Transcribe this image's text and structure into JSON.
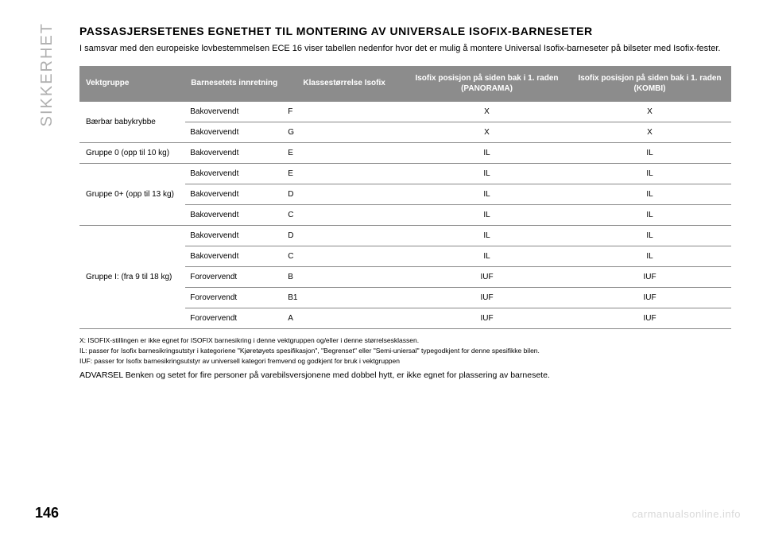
{
  "vertical_label": "SIKKERHET",
  "heading": "PASSASJERSETENES EGNETHET TIL MONTERING AV UNIVERSALE ISOFIX-BARNESETER",
  "intro": "I samsvar med den europeiske lovbestemmelsen ECE 16 viser tabellen nedenfor hvor det er mulig å montere Universal Isofix-barneseter på bilseter med Isofix-fester.",
  "table": {
    "headers": {
      "col0": "Vektgruppe",
      "col1": "Barnesetets innretning",
      "col2": "Klassestørrelse Isofix",
      "col3": "Isofix posisjon på siden bak i 1. raden (PANORAMA)",
      "col4": "Isofix posisjon på siden bak i 1. raden (KOMBI)"
    },
    "groups": [
      {
        "label": "Bærbar babykrybbe",
        "rows": [
          {
            "orient": "Bakovervendt",
            "sizeclass": "F",
            "panorama": "X",
            "kombi": "X"
          },
          {
            "orient": "Bakovervendt",
            "sizeclass": "G",
            "panorama": "X",
            "kombi": "X"
          }
        ]
      },
      {
        "label": "Gruppe 0 (opp til 10 kg)",
        "rows": [
          {
            "orient": "Bakovervendt",
            "sizeclass": "E",
            "panorama": "IL",
            "kombi": "IL"
          }
        ]
      },
      {
        "label": "Gruppe 0+ (opp til 13 kg)",
        "rows": [
          {
            "orient": "Bakovervendt",
            "sizeclass": "E",
            "panorama": "IL",
            "kombi": "IL"
          },
          {
            "orient": "Bakovervendt",
            "sizeclass": "D",
            "panorama": "IL",
            "kombi": "IL"
          },
          {
            "orient": "Bakovervendt",
            "sizeclass": "C",
            "panorama": "IL",
            "kombi": "IL"
          }
        ]
      },
      {
        "label": "Gruppe I: (fra 9 til 18 kg)",
        "rows": [
          {
            "orient": "Bakovervendt",
            "sizeclass": "D",
            "panorama": "IL",
            "kombi": "IL"
          },
          {
            "orient": "Bakovervendt",
            "sizeclass": "C",
            "panorama": "IL",
            "kombi": "IL"
          },
          {
            "orient": "Forovervendt",
            "sizeclass": "B",
            "panorama": "IUF",
            "kombi": "IUF"
          },
          {
            "orient": "Forovervendt",
            "sizeclass": "B1",
            "panorama": "IUF",
            "kombi": "IUF"
          },
          {
            "orient": "Forovervendt",
            "sizeclass": "A",
            "panorama": "IUF",
            "kombi": "IUF"
          }
        ]
      }
    ]
  },
  "notes": {
    "x": "X: ISOFIX-stillingen er ikke egnet for ISOFIX barnesikring i denne vektgruppen og/eller i denne størrelsesklassen.",
    "il": "IL: passer for Isofix barnesikringsutstyr i kategoriene \"Kjøretøyets spesifikasjon\", \"Begrenset\" eller \"Semi-uniersal\" typegodkjent for denne spesifikke bilen.",
    "iuf": "IUF: passer for Isofix barnesikringsutstyr av universell kategori fremvend og godkjent for bruk i vektgruppen"
  },
  "warning": "ADVARSEL Benken og setet for fire personer på varebilsversjonene med dobbel hytt, er ikke egnet for plassering av barnesete.",
  "page_number": "146",
  "watermark": "carmanualsonline.info",
  "colors": {
    "header_bg": "#8c8c8c",
    "header_fg": "#ffffff",
    "row_border": "#888888",
    "vertical_label": "#b0b0b0",
    "watermark": "#d9d9d9"
  }
}
